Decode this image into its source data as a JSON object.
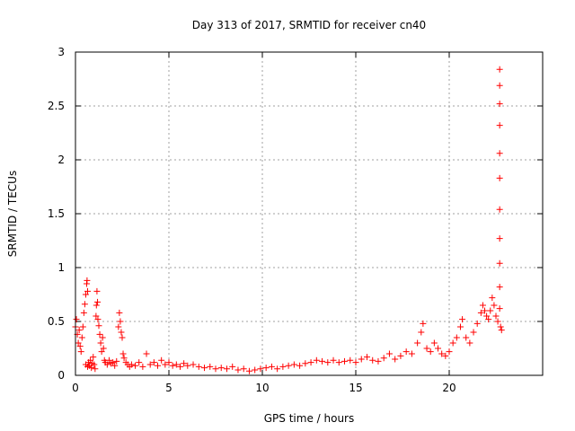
{
  "chart_data": {
    "type": "scatter",
    "title": "Day 313 of 2017, SRMTID for receiver cn40",
    "xlabel": "GPS time / hours",
    "ylabel": "SRMTID / TECUs",
    "xlim": [
      0,
      25
    ],
    "ylim": [
      0,
      3
    ],
    "xticks": [
      0,
      5,
      10,
      15,
      20
    ],
    "xtick_labels": [
      "0",
      "5",
      "10",
      "15",
      "20"
    ],
    "yticks": [
      0,
      0.5,
      1,
      1.5,
      2,
      2.5,
      3
    ],
    "ytick_labels": [
      "0",
      "0.5",
      "1",
      "1.5",
      "2",
      "2.5",
      "3"
    ],
    "grid": true,
    "marker": "plus",
    "series": [
      {
        "name": "SRMTID",
        "color": "#ff0000",
        "points": [
          [
            0.0,
            0.45
          ],
          [
            0.05,
            0.52
          ],
          [
            0.1,
            0.38
          ],
          [
            0.15,
            0.3
          ],
          [
            0.2,
            0.42
          ],
          [
            0.25,
            0.27
          ],
          [
            0.3,
            0.22
          ],
          [
            0.35,
            0.35
          ],
          [
            0.4,
            0.45
          ],
          [
            0.45,
            0.58
          ],
          [
            0.5,
            0.66
          ],
          [
            0.55,
            0.75
          ],
          [
            0.6,
            0.85
          ],
          [
            0.62,
            0.88
          ],
          [
            0.65,
            0.78
          ],
          [
            0.55,
            0.1
          ],
          [
            0.65,
            0.08
          ],
          [
            0.7,
            0.12
          ],
          [
            0.75,
            0.09
          ],
          [
            0.8,
            0.14
          ],
          [
            0.85,
            0.07
          ],
          [
            0.9,
            0.11
          ],
          [
            0.95,
            0.17
          ],
          [
            1.0,
            0.1
          ],
          [
            1.05,
            0.06
          ],
          [
            1.1,
            0.55
          ],
          [
            1.12,
            0.65
          ],
          [
            1.15,
            0.78
          ],
          [
            1.18,
            0.68
          ],
          [
            1.2,
            0.52
          ],
          [
            1.25,
            0.46
          ],
          [
            1.3,
            0.38
          ],
          [
            1.35,
            0.3
          ],
          [
            1.4,
            0.22
          ],
          [
            1.45,
            0.35
          ],
          [
            1.5,
            0.25
          ],
          [
            1.55,
            0.14
          ],
          [
            1.6,
            0.12
          ],
          [
            1.7,
            0.1
          ],
          [
            1.8,
            0.14
          ],
          [
            1.9,
            0.11
          ],
          [
            2.0,
            0.12
          ],
          [
            2.1,
            0.09
          ],
          [
            2.2,
            0.13
          ],
          [
            2.3,
            0.45
          ],
          [
            2.35,
            0.58
          ],
          [
            2.4,
            0.5
          ],
          [
            2.45,
            0.4
          ],
          [
            2.5,
            0.35
          ],
          [
            2.55,
            0.2
          ],
          [
            2.6,
            0.16
          ],
          [
            2.7,
            0.12
          ],
          [
            2.8,
            0.1
          ],
          [
            2.9,
            0.08
          ],
          [
            3.0,
            0.1
          ],
          [
            3.2,
            0.09
          ],
          [
            3.4,
            0.12
          ],
          [
            3.6,
            0.08
          ],
          [
            3.8,
            0.2
          ],
          [
            4.0,
            0.1
          ],
          [
            4.2,
            0.12
          ],
          [
            4.4,
            0.09
          ],
          [
            4.6,
            0.14
          ],
          [
            4.8,
            0.1
          ],
          [
            5.0,
            0.12
          ],
          [
            5.2,
            0.09
          ],
          [
            5.4,
            0.1
          ],
          [
            5.6,
            0.08
          ],
          [
            5.8,
            0.11
          ],
          [
            6.0,
            0.09
          ],
          [
            6.3,
            0.1
          ],
          [
            6.6,
            0.08
          ],
          [
            6.9,
            0.07
          ],
          [
            7.2,
            0.08
          ],
          [
            7.5,
            0.06
          ],
          [
            7.8,
            0.07
          ],
          [
            8.1,
            0.06
          ],
          [
            8.4,
            0.08
          ],
          [
            8.7,
            0.05
          ],
          [
            9.0,
            0.06
          ],
          [
            9.3,
            0.04
          ],
          [
            9.6,
            0.05
          ],
          [
            9.9,
            0.06
          ],
          [
            10.2,
            0.07
          ],
          [
            10.5,
            0.08
          ],
          [
            10.8,
            0.06
          ],
          [
            11.1,
            0.08
          ],
          [
            11.4,
            0.09
          ],
          [
            11.7,
            0.1
          ],
          [
            12.0,
            0.09
          ],
          [
            12.3,
            0.11
          ],
          [
            12.6,
            0.12
          ],
          [
            12.9,
            0.14
          ],
          [
            13.2,
            0.13
          ],
          [
            13.5,
            0.12
          ],
          [
            13.8,
            0.14
          ],
          [
            14.1,
            0.12
          ],
          [
            14.4,
            0.13
          ],
          [
            14.7,
            0.14
          ],
          [
            15.0,
            0.12
          ],
          [
            15.3,
            0.15
          ],
          [
            15.6,
            0.17
          ],
          [
            15.9,
            0.14
          ],
          [
            16.2,
            0.13
          ],
          [
            16.5,
            0.16
          ],
          [
            16.8,
            0.2
          ],
          [
            17.1,
            0.15
          ],
          [
            17.4,
            0.18
          ],
          [
            17.7,
            0.22
          ],
          [
            18.0,
            0.2
          ],
          [
            18.3,
            0.3
          ],
          [
            18.5,
            0.4
          ],
          [
            18.6,
            0.48
          ],
          [
            18.8,
            0.25
          ],
          [
            19.0,
            0.22
          ],
          [
            19.2,
            0.3
          ],
          [
            19.4,
            0.25
          ],
          [
            19.6,
            0.2
          ],
          [
            19.8,
            0.18
          ],
          [
            20.0,
            0.22
          ],
          [
            20.2,
            0.3
          ],
          [
            20.4,
            0.35
          ],
          [
            20.6,
            0.45
          ],
          [
            20.7,
            0.52
          ],
          [
            20.9,
            0.35
          ],
          [
            21.1,
            0.3
          ],
          [
            21.3,
            0.4
          ],
          [
            21.5,
            0.48
          ],
          [
            21.7,
            0.58
          ],
          [
            21.8,
            0.65
          ],
          [
            21.9,
            0.6
          ],
          [
            22.0,
            0.55
          ],
          [
            22.1,
            0.52
          ],
          [
            22.2,
            0.6
          ],
          [
            22.3,
            0.72
          ],
          [
            22.4,
            0.65
          ],
          [
            22.5,
            0.55
          ],
          [
            22.6,
            0.5
          ],
          [
            22.7,
            0.62
          ],
          [
            22.75,
            0.45
          ],
          [
            22.8,
            0.42
          ],
          [
            22.7,
            0.82
          ],
          [
            22.7,
            1.04
          ],
          [
            22.7,
            1.27
          ],
          [
            22.7,
            1.54
          ],
          [
            22.7,
            1.83
          ],
          [
            22.7,
            2.06
          ],
          [
            22.7,
            2.32
          ],
          [
            22.7,
            2.52
          ],
          [
            22.7,
            2.69
          ],
          [
            22.7,
            2.84
          ]
        ]
      }
    ]
  }
}
